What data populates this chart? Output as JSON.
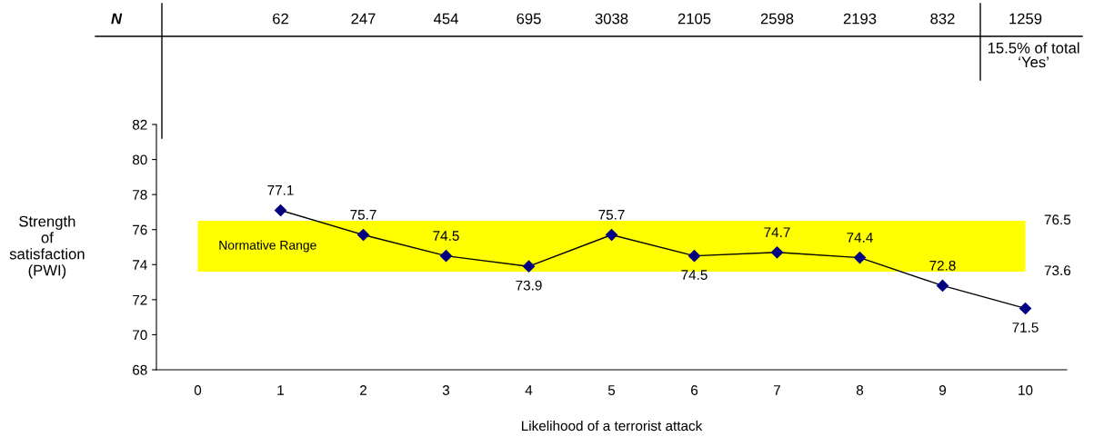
{
  "chart_data": {
    "type": "line",
    "xlabel": "Likelihood of a terrorist attack",
    "ylabel": "Strength\nof\nsatisfaction\n(PWI)",
    "categories": [
      "0",
      "1",
      "2",
      "3",
      "4",
      "5",
      "6",
      "7",
      "8",
      "9",
      "10"
    ],
    "series": [
      {
        "color": "#000080",
        "values": [
          null,
          77.1,
          75.7,
          74.5,
          73.9,
          75.7,
          74.5,
          74.7,
          74.4,
          72.8,
          71.5
        ]
      }
    ],
    "ylim": [
      68,
      82
    ],
    "yticks": [
      68,
      70,
      72,
      74,
      76,
      78,
      80,
      82
    ],
    "bands": [
      {
        "axis": "y",
        "from": 73.6,
        "to": 76.5,
        "label": "Normative Range",
        "color": "#ffff00"
      }
    ],
    "annotations": [
      "N",
      "62",
      "247",
      "454",
      "695",
      "3038",
      "2105",
      "2598",
      "2193",
      "832",
      "1259",
      "15.5% of total\n‘Yes’",
      "76.5",
      "73.6"
    ],
    "data_labels": true,
    "marker": "diamond",
    "line_style": "solid",
    "grid": false,
    "legend": false
  }
}
